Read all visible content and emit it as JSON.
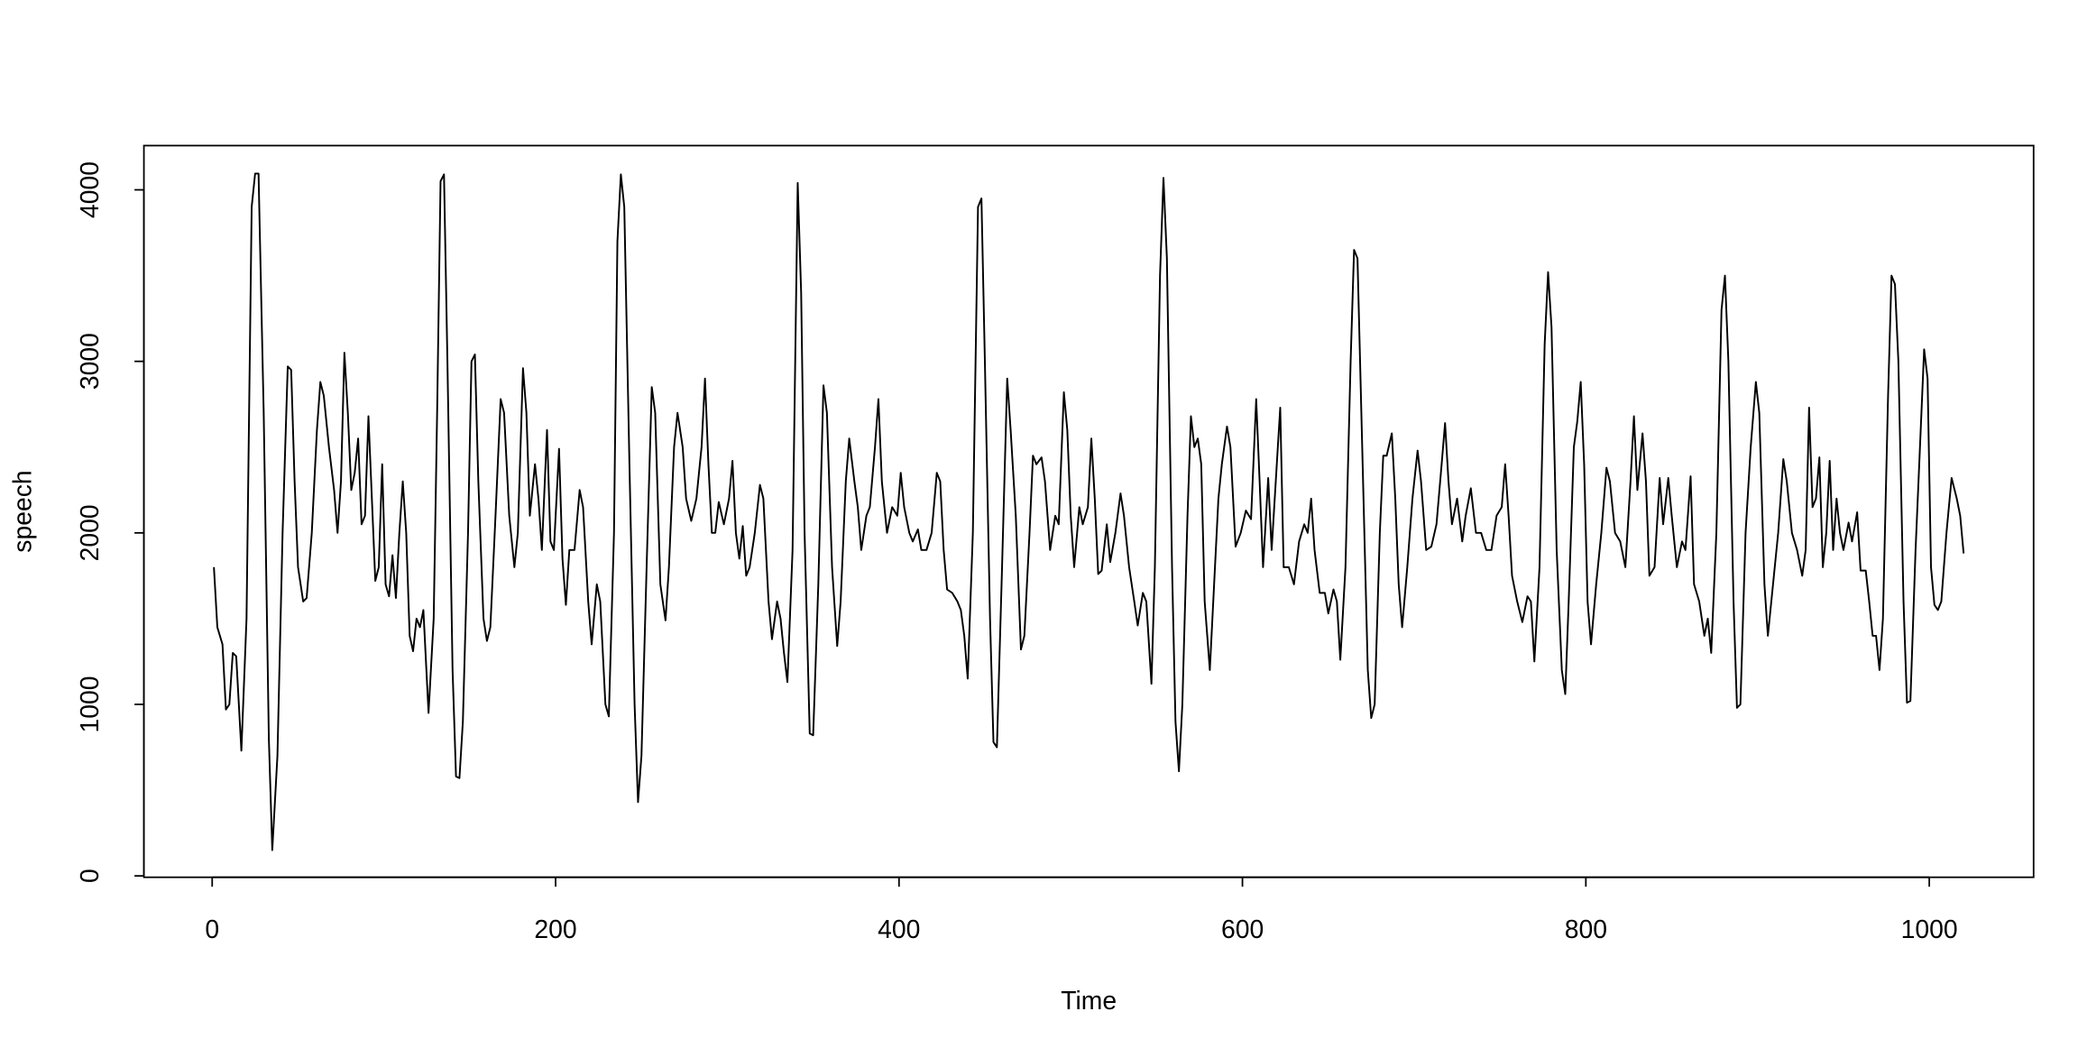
{
  "chart_data": {
    "type": "line",
    "x_label": "Time",
    "y_label": "speech",
    "x": [
      1,
      3,
      6,
      8,
      10,
      12,
      14,
      17,
      20,
      23,
      25,
      27,
      30,
      33,
      35,
      38,
      41,
      44,
      46,
      48,
      50,
      53,
      55,
      58,
      61,
      63,
      65,
      68,
      71,
      73,
      75,
      77,
      79,
      81,
      83,
      85,
      87,
      89,
      91,
      93,
      95,
      97,
      99,
      101,
      103,
      105,
      107,
      109,
      111,
      113,
      115,
      117,
      119,
      121,
      123,
      126,
      129,
      131,
      133,
      135,
      137,
      140,
      142,
      144,
      146,
      149,
      151,
      153,
      155,
      158,
      160,
      162,
      165,
      168,
      170,
      173,
      176,
      178,
      181,
      183,
      185,
      188,
      190,
      192,
      195,
      197,
      199,
      202,
      204,
      206,
      208,
      211,
      214,
      216,
      219,
      221,
      224,
      226,
      229,
      231,
      234,
      236,
      238,
      240,
      243,
      246,
      248,
      250,
      253,
      256,
      258,
      261,
      264,
      266,
      269,
      271,
      274,
      276,
      279,
      282,
      285,
      287,
      289,
      291,
      293,
      295,
      298,
      301,
      303,
      305,
      307,
      309,
      311,
      313,
      316,
      319,
      321,
      324,
      326,
      329,
      331,
      333,
      335,
      338,
      341,
      343,
      345,
      348,
      350,
      353,
      356,
      358,
      361,
      364,
      366,
      369,
      371,
      374,
      376,
      378,
      381,
      383,
      386,
      388,
      390,
      393,
      396,
      399,
      401,
      403,
      406,
      408,
      411,
      413,
      416,
      419,
      422,
      424,
      426,
      428,
      431,
      434,
      436,
      438,
      440,
      443,
      446,
      448,
      450,
      453,
      455,
      457,
      460,
      463,
      465,
      468,
      471,
      473,
      476,
      478,
      480,
      483,
      485,
      488,
      491,
      493,
      496,
      498,
      500,
      502,
      505,
      507,
      510,
      512,
      514,
      516,
      518,
      521,
      523,
      526,
      529,
      531,
      534,
      537,
      539,
      542,
      544,
      547,
      549,
      552,
      554,
      556,
      559,
      561,
      563,
      565,
      568,
      570,
      572,
      574,
      576,
      578,
      581,
      583,
      586,
      588,
      591,
      593,
      596,
      599,
      602,
      605,
      608,
      610,
      612,
      615,
      617,
      620,
      622,
      624,
      627,
      630,
      633,
      636,
      638,
      640,
      642,
      645,
      648,
      650,
      653,
      655,
      657,
      660,
      663,
      665,
      667,
      670,
      673,
      675,
      677,
      680,
      682,
      684,
      687,
      689,
      691,
      693,
      696,
      699,
      702,
      704,
      707,
      710,
      713,
      716,
      718,
      720,
      722,
      725,
      728,
      730,
      733,
      736,
      739,
      742,
      745,
      748,
      751,
      753,
      755,
      757,
      760,
      763,
      766,
      768,
      770,
      773,
      776,
      778,
      780,
      783,
      786,
      788,
      790,
      793,
      795,
      797,
      799,
      801,
      803,
      806,
      809,
      812,
      814,
      817,
      820,
      823,
      826,
      828,
      830,
      833,
      835,
      837,
      840,
      843,
      845,
      848,
      850,
      853,
      856,
      858,
      861,
      863,
      866,
      869,
      871,
      873,
      876,
      879,
      881,
      883,
      886,
      888,
      890,
      893,
      896,
      899,
      901,
      904,
      906,
      909,
      912,
      915,
      917,
      920,
      923,
      926,
      928,
      930,
      932,
      934,
      936,
      938,
      940,
      942,
      944,
      946,
      948,
      950,
      953,
      955,
      958,
      960,
      963,
      965,
      967,
      969,
      971,
      973,
      976,
      978,
      980,
      982,
      985,
      987,
      989,
      992,
      995,
      997,
      999,
      1001,
      1003,
      1005,
      1007,
      1010,
      1013,
      1016,
      1018,
      1020
    ],
    "values": [
      1800,
      1450,
      1350,
      970,
      1000,
      1300,
      1280,
      730,
      1500,
      3900,
      4095,
      4095,
      2700,
      800,
      150,
      700,
      2000,
      2970,
      2950,
      2300,
      1800,
      1600,
      1620,
      2000,
      2600,
      2880,
      2800,
      2500,
      2250,
      2000,
      2300,
      3050,
      2700,
      2250,
      2350,
      2550,
      2050,
      2100,
      2680,
      2200,
      1720,
      1800,
      2400,
      1700,
      1630,
      1870,
      1620,
      2000,
      2300,
      2000,
      1400,
      1310,
      1500,
      1450,
      1550,
      950,
      1500,
      2700,
      4050,
      4090,
      3000,
      1200,
      580,
      570,
      900,
      2000,
      3000,
      3040,
      2300,
      1500,
      1370,
      1450,
      2100,
      2780,
      2700,
      2100,
      1800,
      2000,
      2960,
      2700,
      2100,
      2400,
      2200,
      1900,
      2600,
      1950,
      1900,
      2490,
      1850,
      1580,
      1900,
      1900,
      2250,
      2150,
      1600,
      1350,
      1700,
      1600,
      1000,
      930,
      2000,
      3700,
      4090,
      3900,
      2400,
      1000,
      430,
      700,
      1800,
      2850,
      2700,
      1700,
      1490,
      1800,
      2500,
      2700,
      2500,
      2200,
      2070,
      2200,
      2500,
      2900,
      2400,
      2000,
      2000,
      2180,
      2050,
      2200,
      2420,
      2000,
      1850,
      2040,
      1750,
      1800,
      2000,
      2280,
      2200,
      1600,
      1380,
      1600,
      1500,
      1300,
      1130,
      1900,
      4040,
      3400,
      2000,
      830,
      820,
      1700,
      2860,
      2700,
      1800,
      1340,
      1600,
      2300,
      2550,
      2300,
      2150,
      1900,
      2100,
      2150,
      2500,
      2780,
      2300,
      2000,
      2150,
      2100,
      2350,
      2150,
      2000,
      1950,
      2020,
      1900,
      1900,
      2000,
      2350,
      2300,
      1900,
      1670,
      1650,
      1600,
      1550,
      1400,
      1150,
      2000,
      3900,
      3950,
      3000,
      1500,
      780,
      750,
      1800,
      2900,
      2600,
      2100,
      1320,
      1400,
      2000,
      2450,
      2400,
      2440,
      2300,
      1900,
      2100,
      2050,
      2820,
      2600,
      2100,
      1800,
      2150,
      2050,
      2150,
      2550,
      2200,
      1760,
      1780,
      2050,
      1830,
      2000,
      2230,
      2100,
      1800,
      1600,
      1460,
      1650,
      1600,
      1120,
      1800,
      3500,
      4070,
      3600,
      1800,
      900,
      610,
      1000,
      2100,
      2680,
      2500,
      2550,
      2400,
      1600,
      1200,
      1600,
      2200,
      2400,
      2620,
      2500,
      1920,
      2000,
      2130,
      2080,
      2780,
      2300,
      1800,
      2320,
      1900,
      2400,
      2730,
      1800,
      1800,
      1700,
      1950,
      2050,
      2000,
      2200,
      1900,
      1650,
      1650,
      1530,
      1670,
      1600,
      1260,
      1800,
      3000,
      3650,
      3600,
      2400,
      1200,
      920,
      1000,
      2000,
      2450,
      2450,
      2580,
      2200,
      1700,
      1450,
      1800,
      2200,
      2480,
      2300,
      1900,
      1920,
      2050,
      2400,
      2640,
      2300,
      2050,
      2200,
      1950,
      2100,
      2260,
      2000,
      2000,
      1900,
      1900,
      2100,
      2150,
      2400,
      2100,
      1750,
      1600,
      1480,
      1630,
      1600,
      1250,
      1800,
      3100,
      3520,
      3200,
      1900,
      1200,
      1060,
      1600,
      2500,
      2650,
      2880,
      2400,
      1600,
      1350,
      1700,
      2000,
      2380,
      2300,
      2000,
      1950,
      1800,
      2300,
      2680,
      2250,
      2580,
      2300,
      1750,
      1800,
      2320,
      2050,
      2320,
      2100,
      1800,
      1950,
      1900,
      2330,
      1700,
      1600,
      1400,
      1500,
      1300,
      2000,
      3300,
      3500,
      3000,
      1600,
      980,
      1000,
      2000,
      2500,
      2880,
      2700,
      1700,
      1400,
      1700,
      2000,
      2430,
      2300,
      2000,
      1900,
      1750,
      1900,
      2730,
      2150,
      2200,
      2440,
      1800,
      2000,
      2420,
      1900,
      2200,
      2000,
      1900,
      2060,
      1950,
      2120,
      1780,
      1780,
      1600,
      1400,
      1400,
      1200,
      1500,
      2800,
      3500,
      3450,
      3000,
      1600,
      1010,
      1020,
      1900,
      2600,
      3070,
      2900,
      1800,
      1580,
      1550,
      1600,
      2000,
      2320,
      2200,
      2100,
      1880
    ],
    "color": "#000000",
    "xlim": [
      -39.76,
      1060.76
    ],
    "xticks": [
      0,
      200,
      400,
      600,
      800,
      1000
    ],
    "ylim": [
      -8,
      4258
    ],
    "yticks": [
      0,
      1000,
      2000,
      3000,
      4000
    ]
  }
}
